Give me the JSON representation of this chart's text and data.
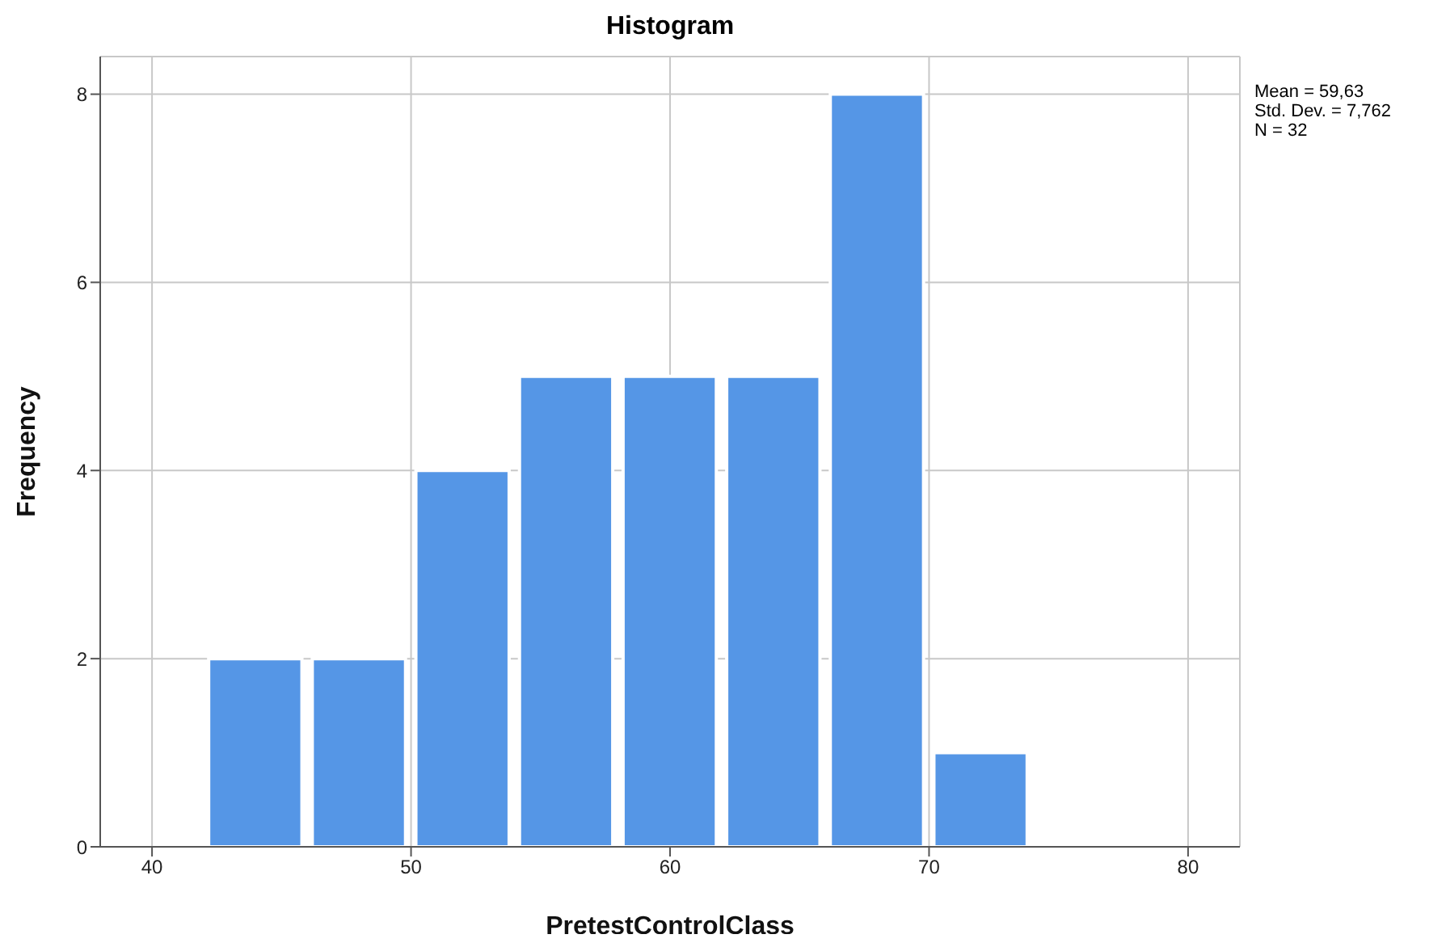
{
  "chart_data": {
    "type": "histogram",
    "title": "Histogram",
    "xlabel": "PretestControlClass",
    "ylabel": "Frequency",
    "bins": [
      42,
      46,
      50,
      54,
      58,
      62,
      66,
      70,
      74
    ],
    "values": [
      2,
      2,
      4,
      5,
      5,
      5,
      8,
      1
    ],
    "color": "#5596e6",
    "xlim": [
      38,
      82
    ],
    "xticks": [
      40,
      50,
      60,
      70,
      80
    ],
    "ylim": [
      0,
      8.4
    ],
    "yticks": [
      0,
      2,
      4,
      6,
      8
    ],
    "grid": true,
    "annotations": [
      "Mean = 59,63",
      "Std. Dev. = 7,762",
      "N = 32"
    ]
  }
}
